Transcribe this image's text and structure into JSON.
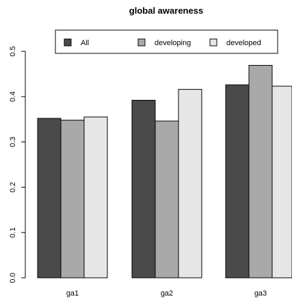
{
  "chart_data": {
    "type": "bar",
    "title": "global awareness",
    "xlabel": "",
    "ylabel": "",
    "categories": [
      "ga1",
      "ga2",
      "ga3"
    ],
    "series": [
      {
        "name": "All",
        "values": [
          0.352,
          0.392,
          0.426
        ],
        "color": "#4a4a4a"
      },
      {
        "name": "developing",
        "values": [
          0.348,
          0.346,
          0.469
        ],
        "color": "#a9a9a9"
      },
      {
        "name": "developed",
        "values": [
          0.355,
          0.416,
          0.423
        ],
        "color": "#e6e6e6"
      }
    ],
    "ylim": [
      0,
      0.5
    ],
    "yticks": [
      0.0,
      0.1,
      0.2,
      0.3,
      0.4,
      0.5
    ],
    "ytick_labels": [
      "0.0",
      "0.1",
      "0.2",
      "0.3",
      "0.4",
      "0.5"
    ],
    "grid": false,
    "legend_position": "top"
  }
}
